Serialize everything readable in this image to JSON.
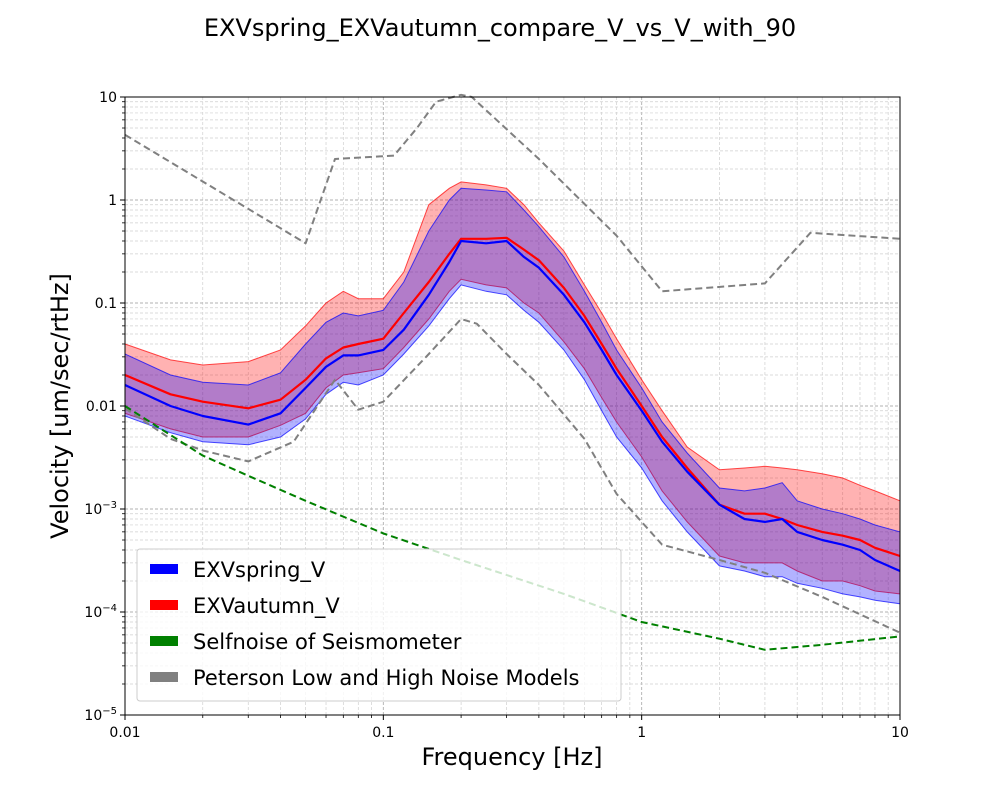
{
  "chart_data": {
    "type": "line",
    "title": "EXVspring_EXVautumn_compare_V_vs_V_with_90",
    "xlabel": "Frequency [Hz]",
    "ylabel": "Velocity [um/sec/rtHz]",
    "xscale": "log",
    "yscale": "log",
    "xlim": [
      0.01,
      10
    ],
    "ylim": [
      1e-05,
      10
    ],
    "grid": true,
    "legend_position": "lower-left",
    "x_ticks": [
      {
        "value": 0.01,
        "label": "0.01"
      },
      {
        "value": 0.1,
        "label": "0.1"
      },
      {
        "value": 1,
        "label": "1"
      },
      {
        "value": 10,
        "label": "10"
      }
    ],
    "y_ticks": [
      {
        "value": 1e-05,
        "base": "10",
        "exp": "−5"
      },
      {
        "value": 0.0001,
        "base": "10",
        "exp": "−4"
      },
      {
        "value": 0.001,
        "base": "10",
        "exp": "−3"
      },
      {
        "value": 0.01,
        "label": "0.01"
      },
      {
        "value": 0.1,
        "label": "0.1"
      },
      {
        "value": 1,
        "label": "1"
      },
      {
        "value": 10,
        "label": "10"
      }
    ],
    "series": [
      {
        "name": "EXVspring_V",
        "color": "#0000ff",
        "style": "solid",
        "x": [
          0.01,
          0.015,
          0.02,
          0.03,
          0.04,
          0.05,
          0.06,
          0.07,
          0.08,
          0.1,
          0.12,
          0.15,
          0.18,
          0.2,
          0.25,
          0.3,
          0.35,
          0.4,
          0.5,
          0.6,
          0.7,
          0.8,
          1.0,
          1.2,
          1.5,
          2,
          2.5,
          3,
          3.5,
          4,
          5,
          6,
          7,
          8,
          10
        ],
        "y": [
          0.016,
          0.01,
          0.008,
          0.0066,
          0.0085,
          0.015,
          0.024,
          0.031,
          0.031,
          0.035,
          0.055,
          0.12,
          0.25,
          0.4,
          0.38,
          0.4,
          0.28,
          0.22,
          0.12,
          0.065,
          0.035,
          0.02,
          0.009,
          0.0045,
          0.0023,
          0.0011,
          0.0008,
          0.00075,
          0.0008,
          0.0006,
          0.0005,
          0.00045,
          0.0004,
          0.00032,
          0.00025
        ]
      },
      {
        "name": "EXVautumn_V",
        "color": "#ff0000",
        "style": "solid",
        "x": [
          0.01,
          0.015,
          0.02,
          0.03,
          0.04,
          0.05,
          0.06,
          0.07,
          0.08,
          0.1,
          0.12,
          0.15,
          0.18,
          0.2,
          0.25,
          0.3,
          0.35,
          0.4,
          0.5,
          0.6,
          0.7,
          0.8,
          1.0,
          1.2,
          1.5,
          2,
          2.5,
          3,
          3.5,
          4,
          5,
          6,
          7,
          8,
          10
        ],
        "y": [
          0.02,
          0.013,
          0.011,
          0.0095,
          0.0115,
          0.018,
          0.029,
          0.037,
          0.04,
          0.045,
          0.08,
          0.16,
          0.3,
          0.42,
          0.42,
          0.43,
          0.33,
          0.26,
          0.14,
          0.075,
          0.04,
          0.023,
          0.01,
          0.005,
          0.0025,
          0.0011,
          0.0009,
          0.0009,
          0.0008,
          0.0007,
          0.0006,
          0.00055,
          0.0005,
          0.00042,
          0.00035
        ]
      },
      {
        "name": "Selfnoise of Seismometer",
        "color": "#008000",
        "style": "dashed",
        "x": [
          0.01,
          0.02,
          0.03,
          0.05,
          0.1,
          0.2,
          0.5,
          1.0,
          2.0,
          3.0,
          5.0,
          10.0
        ],
        "y": [
          0.01,
          0.0033,
          0.0021,
          0.0012,
          0.00058,
          0.00032,
          0.00015,
          8e-05,
          5.5e-05,
          4.3e-05,
          4.8e-05,
          5.8e-05
        ]
      },
      {
        "name": "Peterson Low and High Noise Models",
        "color": "#808080",
        "style": "dashed",
        "x": [
          0.01,
          0.05,
          0.065,
          0.11,
          0.135,
          0.16,
          0.2,
          0.22,
          0.4,
          0.8,
          1.2,
          3.0,
          4.5,
          10.0
        ],
        "y": [
          4.3,
          0.38,
          2.5,
          2.7,
          5.0,
          9.0,
          10.5,
          10.0,
          2.5,
          0.45,
          0.13,
          0.155,
          0.48,
          0.42
        ],
        "x2": [
          0.01,
          0.015,
          0.02,
          0.03,
          0.045,
          0.065,
          0.08,
          0.1,
          0.15,
          0.2,
          0.23,
          0.3,
          0.4,
          0.6,
          0.8,
          1.2,
          2,
          3,
          5,
          7,
          10
        ],
        "y2": [
          0.0095,
          0.0048,
          0.0037,
          0.0029,
          0.0045,
          0.018,
          0.0092,
          0.011,
          0.032,
          0.07,
          0.063,
          0.032,
          0.016,
          0.0048,
          0.0014,
          0.00045,
          0.00032,
          0.00024,
          0.00014,
          9.5e-05,
          6.3e-05
        ]
      }
    ],
    "bands": [
      {
        "name": "EXVautumn_V 90% range",
        "color": "#ff0000",
        "fill": "rgba(255,0,0,0.30)",
        "x": [
          0.01,
          0.015,
          0.02,
          0.03,
          0.04,
          0.05,
          0.06,
          0.07,
          0.08,
          0.1,
          0.12,
          0.15,
          0.18,
          0.2,
          0.25,
          0.3,
          0.35,
          0.4,
          0.5,
          0.6,
          0.7,
          0.8,
          1.0,
          1.2,
          1.5,
          2,
          2.5,
          3,
          3.5,
          4,
          5,
          6,
          7,
          8,
          10
        ],
        "upper": [
          0.04,
          0.028,
          0.025,
          0.027,
          0.035,
          0.06,
          0.1,
          0.13,
          0.11,
          0.11,
          0.2,
          0.9,
          1.3,
          1.5,
          1.4,
          1.3,
          0.9,
          0.6,
          0.32,
          0.15,
          0.08,
          0.045,
          0.018,
          0.009,
          0.004,
          0.0024,
          0.0025,
          0.0026,
          0.0025,
          0.0024,
          0.0022,
          0.002,
          0.0017,
          0.0015,
          0.0012
        ],
        "lower": [
          0.0085,
          0.006,
          0.005,
          0.005,
          0.0065,
          0.0085,
          0.015,
          0.02,
          0.021,
          0.023,
          0.037,
          0.07,
          0.13,
          0.17,
          0.15,
          0.14,
          0.1,
          0.08,
          0.042,
          0.023,
          0.012,
          0.007,
          0.0032,
          0.0015,
          0.00075,
          0.00035,
          0.0003,
          0.0003,
          0.0003,
          0.00025,
          0.0002,
          0.0002,
          0.00018,
          0.00016,
          0.00015
        ]
      },
      {
        "name": "EXVspring_V 90% range",
        "color": "#0000ff",
        "fill": "rgba(0,0,255,0.30)",
        "x": [
          0.01,
          0.015,
          0.02,
          0.03,
          0.04,
          0.05,
          0.06,
          0.07,
          0.08,
          0.1,
          0.12,
          0.15,
          0.18,
          0.2,
          0.25,
          0.3,
          0.35,
          0.4,
          0.5,
          0.6,
          0.7,
          0.8,
          1.0,
          1.2,
          1.5,
          2,
          2.5,
          3,
          3.5,
          4,
          5,
          6,
          7,
          8,
          10
        ],
        "upper": [
          0.032,
          0.02,
          0.017,
          0.016,
          0.021,
          0.04,
          0.065,
          0.08,
          0.075,
          0.085,
          0.16,
          0.5,
          1.0,
          1.3,
          1.25,
          1.2,
          0.8,
          0.55,
          0.28,
          0.13,
          0.065,
          0.035,
          0.015,
          0.007,
          0.0035,
          0.0016,
          0.0015,
          0.0016,
          0.0018,
          0.0012,
          0.001,
          0.0009,
          0.0008,
          0.0007,
          0.0006
        ],
        "lower": [
          0.008,
          0.0055,
          0.0045,
          0.0042,
          0.005,
          0.0075,
          0.013,
          0.017,
          0.016,
          0.02,
          0.032,
          0.06,
          0.11,
          0.15,
          0.13,
          0.12,
          0.085,
          0.065,
          0.035,
          0.018,
          0.009,
          0.005,
          0.0025,
          0.0012,
          0.0006,
          0.00028,
          0.00025,
          0.00022,
          0.00022,
          0.00019,
          0.00017,
          0.00015,
          0.00014,
          0.00013,
          0.00012
        ]
      }
    ],
    "legend": [
      {
        "label": "EXVspring_V",
        "color": "#0000ff"
      },
      {
        "label": "EXVautumn_V",
        "color": "#ff0000"
      },
      {
        "label": "Selfnoise of Seismometer",
        "color": "#008000"
      },
      {
        "label": "Peterson Low and High Noise Models",
        "color": "#808080"
      }
    ]
  }
}
